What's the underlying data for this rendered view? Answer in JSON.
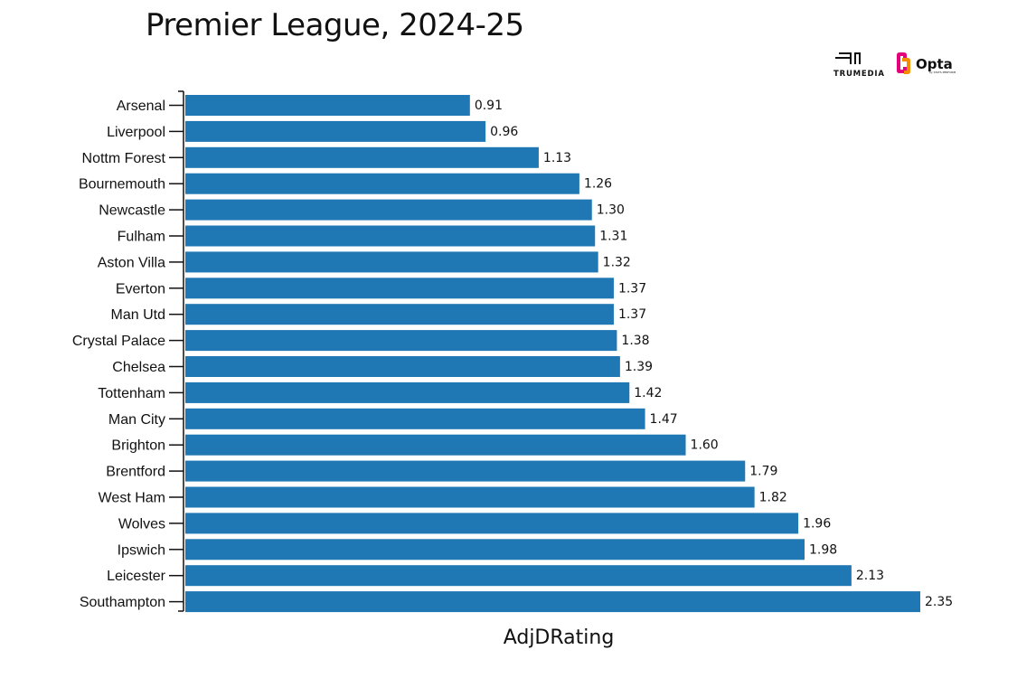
{
  "chart_data": {
    "type": "bar",
    "orientation": "horizontal",
    "title": "Premier League, 2024-25",
    "xlabel": "AdjDRating",
    "ylabel": "",
    "bar_color": "#1f77b4",
    "xlim": [
      0,
      2.35
    ],
    "categories": [
      "Arsenal",
      "Liverpool",
      "Nottm Forest",
      "Bournemouth",
      "Newcastle",
      "Fulham",
      "Aston Villa",
      "Everton",
      "Man Utd",
      "Crystal Palace",
      "Chelsea",
      "Tottenham",
      "Man City",
      "Brighton",
      "Brentford",
      "West Ham",
      "Wolves",
      "Ipswich",
      "Leicester",
      "Southampton"
    ],
    "values": [
      0.91,
      0.96,
      1.13,
      1.26,
      1.3,
      1.31,
      1.32,
      1.37,
      1.37,
      1.38,
      1.39,
      1.42,
      1.47,
      1.6,
      1.79,
      1.82,
      1.96,
      1.98,
      2.13,
      2.35
    ],
    "value_labels": [
      "0.91",
      "0.96",
      "1.13",
      "1.26",
      "1.30",
      "1.31",
      "1.32",
      "1.37",
      "1.37",
      "1.38",
      "1.39",
      "1.42",
      "1.47",
      "1.60",
      "1.79",
      "1.82",
      "1.96",
      "1.98",
      "2.13",
      "2.35"
    ]
  },
  "logos": {
    "trumedia": "TRUMEDIA",
    "opta": "Opta",
    "opta_sub": "by STATS PERFORM"
  }
}
